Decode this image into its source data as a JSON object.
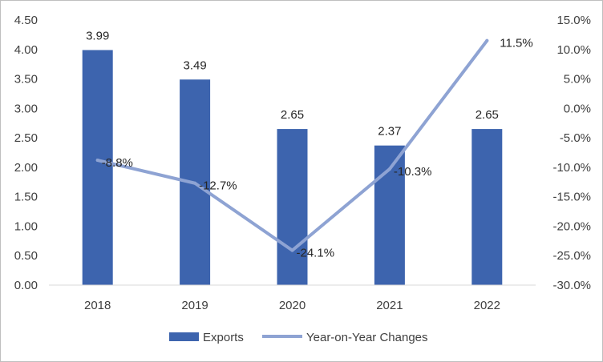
{
  "chart_data": {
    "type": "bar+line",
    "title": "",
    "categories": [
      "2018",
      "2019",
      "2020",
      "2021",
      "2022"
    ],
    "series": [
      {
        "name": "Exports",
        "type": "bar",
        "axis": "left",
        "values": [
          3.99,
          3.49,
          2.65,
          2.37,
          2.65
        ],
        "labels": [
          "3.99",
          "3.49",
          "2.65",
          "2.37",
          "2.65"
        ],
        "color": "#3d64ae"
      },
      {
        "name": "Year-on-Year Changes",
        "type": "line",
        "axis": "right",
        "values": [
          -8.8,
          -12.7,
          -24.1,
          -10.3,
          11.5
        ],
        "labels": [
          "-8.8%",
          "-12.7%",
          "-24.1%",
          "-10.3%",
          "11.5%"
        ],
        "color": "#8ea3d3"
      }
    ],
    "y_left": {
      "range": [
        0,
        4.5
      ],
      "ticks": [
        "0.00",
        "0.50",
        "1.00",
        "1.50",
        "2.00",
        "2.50",
        "3.00",
        "3.50",
        "4.00",
        "4.50"
      ]
    },
    "y_right": {
      "range": [
        -30,
        15
      ],
      "ticks": [
        "-30.0%",
        "-25.0%",
        "-20.0%",
        "-15.0%",
        "-10.0%",
        "-5.0%",
        "0.0%",
        "5.0%",
        "10.0%",
        "15.0%"
      ]
    },
    "grid": false,
    "legend_position": "bottom",
    "axis_color": "#d9d9d9"
  }
}
